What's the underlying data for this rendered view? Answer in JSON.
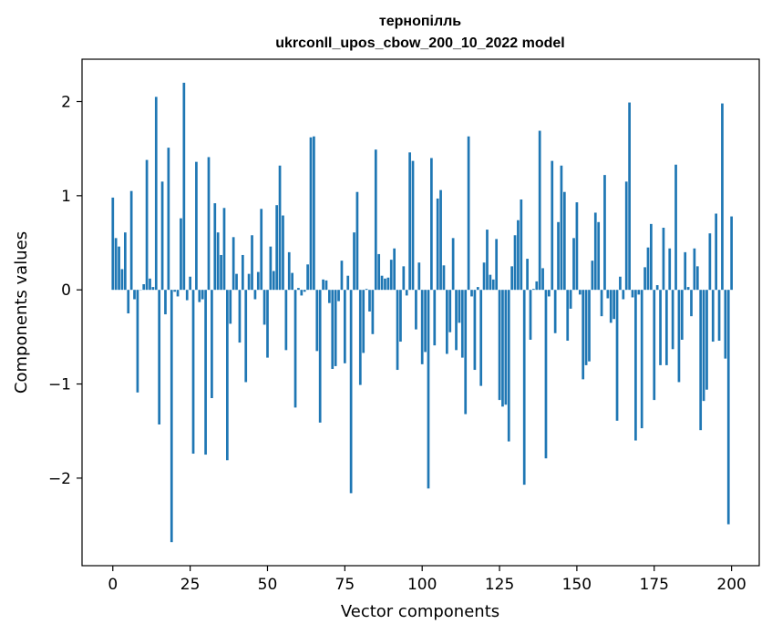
{
  "chart_data": {
    "type": "bar",
    "title_line1": "тернопілль",
    "title_line2": "ukrconll_upos_cbow_200_10_2022 model",
    "xlabel": "Vector components",
    "ylabel": "Components values",
    "xlim": [
      -9.95,
      208.95
    ],
    "ylim": [
      -2.93,
      2.45
    ],
    "xticks": [
      0,
      25,
      50,
      75,
      100,
      125,
      150,
      175,
      200
    ],
    "xtick_labels": [
      "0",
      "25",
      "50",
      "75",
      "100",
      "125",
      "150",
      "175",
      "200"
    ],
    "yticks": [
      -2,
      -1,
      0,
      1,
      2
    ],
    "ytick_labels": [
      "−2",
      "−1",
      "0",
      "1",
      "2"
    ],
    "bar_color": "#1f77b4",
    "grid": false,
    "values": [
      0.98,
      0.55,
      0.46,
      0.22,
      0.61,
      -0.25,
      1.05,
      -0.1,
      -1.09,
      0.0,
      0.06,
      1.38,
      0.12,
      0.03,
      2.05,
      -1.43,
      1.15,
      -0.26,
      1.51,
      -2.68,
      -0.02,
      -0.07,
      0.76,
      2.2,
      -0.11,
      0.14,
      -1.74,
      1.36,
      -0.13,
      -0.1,
      -1.75,
      1.41,
      -1.15,
      0.92,
      0.61,
      0.37,
      0.87,
      -1.81,
      -0.36,
      0.56,
      0.17,
      -0.56,
      0.37,
      -0.98,
      0.17,
      0.58,
      -0.1,
      0.19,
      0.86,
      -0.37,
      -0.72,
      0.46,
      0.2,
      0.9,
      1.32,
      0.79,
      -0.64,
      0.4,
      0.18,
      -1.25,
      0.02,
      -0.06,
      -0.02,
      0.27,
      1.62,
      1.63,
      -0.65,
      -1.41,
      0.11,
      0.1,
      -0.14,
      -0.84,
      -0.81,
      -0.12,
      0.31,
      -0.78,
      0.15,
      -2.16,
      0.61,
      1.04,
      -1.01,
      -0.67,
      0.01,
      -0.23,
      -0.47,
      1.49,
      0.38,
      0.15,
      0.12,
      0.13,
      0.32,
      0.44,
      -0.85,
      -0.55,
      0.25,
      -0.06,
      1.46,
      1.37,
      -0.42,
      0.29,
      -0.79,
      -0.66,
      -2.11,
      1.4,
      -0.59,
      0.97,
      1.06,
      0.26,
      -0.68,
      -0.45,
      0.55,
      -0.64,
      -0.35,
      -0.72,
      -1.32,
      1.63,
      -0.07,
      -0.85,
      0.03,
      -1.02,
      0.29,
      0.64,
      0.16,
      0.11,
      0.54,
      -1.17,
      -1.24,
      -1.22,
      -1.61,
      0.25,
      0.58,
      0.74,
      0.96,
      -2.07,
      0.33,
      -0.53,
      0.01,
      0.09,
      1.69,
      0.23,
      -1.79,
      -0.07,
      1.37,
      -0.46,
      0.72,
      1.32,
      1.04,
      -0.54,
      -0.2,
      0.55,
      0.93,
      -0.05,
      -0.95,
      -0.8,
      -0.76,
      0.31,
      0.82,
      0.72,
      -0.28,
      1.22,
      -0.09,
      -0.35,
      -0.31,
      -1.39,
      0.14,
      -0.1,
      1.15,
      1.99,
      -0.08,
      -1.6,
      -0.05,
      -1.47,
      0.24,
      0.45,
      0.7,
      -1.17,
      0.05,
      -0.8,
      0.66,
      -0.8,
      0.44,
      -0.63,
      1.33,
      -0.98,
      -0.53,
      0.4,
      0.03,
      -0.28,
      0.44,
      0.25,
      -1.49,
      -1.18,
      -1.06,
      0.6,
      -0.55,
      0.81,
      -0.54,
      1.98,
      -0.73,
      -2.49,
      0.78
    ]
  }
}
